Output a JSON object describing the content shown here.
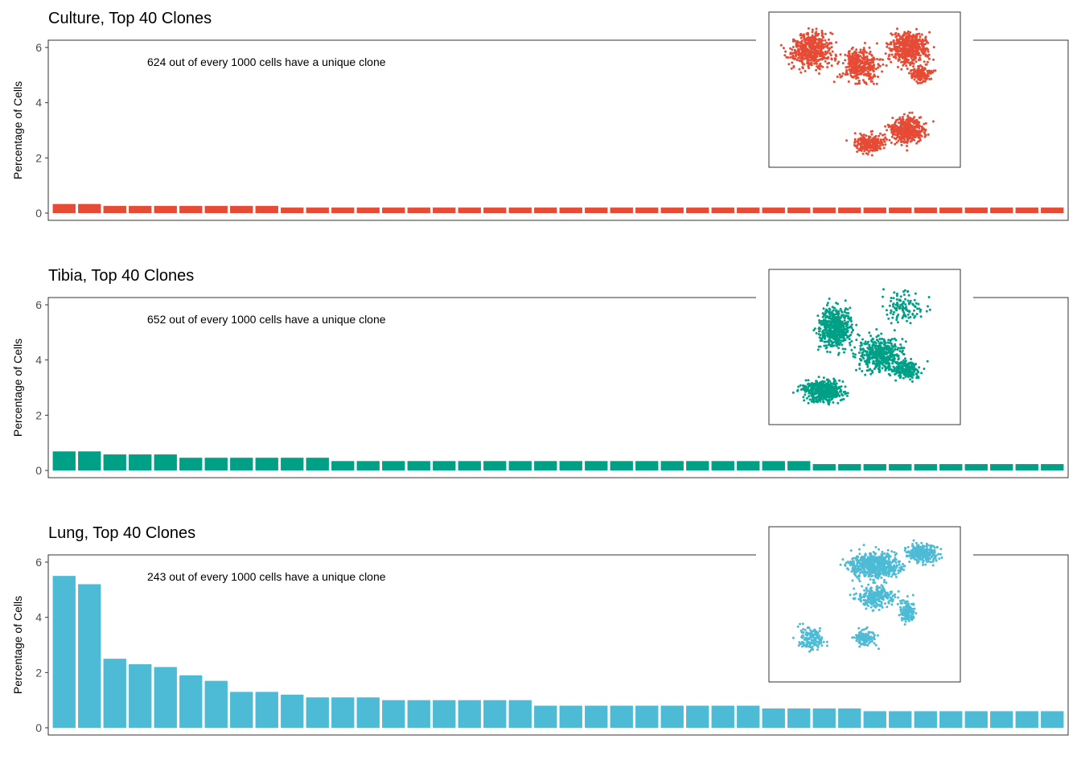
{
  "chart_data": [
    {
      "type": "bar",
      "title": "Culture, Top 40 Clones",
      "ylabel": "Percentage of Cells",
      "xlabel": "",
      "ylim": [
        0,
        6.2
      ],
      "yticks": [
        "0",
        "2",
        "4",
        "6"
      ],
      "annotation": "624 out of every 1000 cells have a unique clone",
      "color": "#E64B35",
      "values": [
        0.33,
        0.33,
        0.26,
        0.26,
        0.26,
        0.26,
        0.26,
        0.26,
        0.26,
        0.2,
        0.2,
        0.2,
        0.2,
        0.2,
        0.2,
        0.2,
        0.2,
        0.2,
        0.2,
        0.2,
        0.2,
        0.2,
        0.2,
        0.2,
        0.2,
        0.2,
        0.2,
        0.2,
        0.2,
        0.2,
        0.2,
        0.2,
        0.2,
        0.2,
        0.2,
        0.2,
        0.2,
        0.2,
        0.2,
        0.2
      ],
      "inset": {
        "type": "scatter",
        "description_color": "#E64B35"
      }
    },
    {
      "type": "bar",
      "title": "Tibia, Top 40 Clones",
      "ylabel": "Percentage of Cells",
      "xlabel": "",
      "ylim": [
        0,
        6.2
      ],
      "yticks": [
        "0",
        "2",
        "4",
        "6"
      ],
      "annotation": "652 out of every 1000 cells have a unique clone",
      "color": "#00A087",
      "values": [
        0.69,
        0.69,
        0.58,
        0.58,
        0.58,
        0.46,
        0.46,
        0.46,
        0.46,
        0.46,
        0.46,
        0.34,
        0.34,
        0.34,
        0.34,
        0.34,
        0.34,
        0.34,
        0.34,
        0.34,
        0.34,
        0.34,
        0.34,
        0.34,
        0.34,
        0.34,
        0.34,
        0.34,
        0.34,
        0.34,
        0.23,
        0.23,
        0.23,
        0.23,
        0.23,
        0.23,
        0.23,
        0.23,
        0.23,
        0.23
      ],
      "inset": {
        "type": "scatter",
        "description_color": "#00A087"
      }
    },
    {
      "type": "bar",
      "title": "Lung, Top 40 Clones",
      "ylabel": "Percentage of Cells",
      "xlabel": "",
      "ylim": [
        0,
        6.2
      ],
      "yticks": [
        "0",
        "2",
        "4",
        "6"
      ],
      "annotation": "243 out of every 1000 cells have a unique clone",
      "color": "#4DBBD5",
      "values": [
        5.5,
        5.2,
        2.5,
        2.3,
        2.2,
        1.9,
        1.7,
        1.3,
        1.3,
        1.2,
        1.1,
        1.1,
        1.1,
        1.0,
        1.0,
        1.0,
        1.0,
        1.0,
        1.0,
        0.8,
        0.8,
        0.8,
        0.8,
        0.8,
        0.8,
        0.8,
        0.8,
        0.8,
        0.7,
        0.7,
        0.7,
        0.7,
        0.6,
        0.6,
        0.6,
        0.6,
        0.6,
        0.6,
        0.6,
        0.6
      ],
      "inset": {
        "type": "scatter",
        "description_color": "#4DBBD5"
      }
    }
  ]
}
